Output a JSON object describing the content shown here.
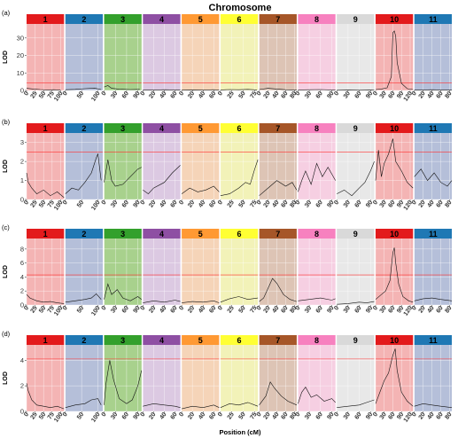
{
  "figure": {
    "title": "Chromosome",
    "xlabel": "Position (cM)"
  },
  "chromosomes": [
    {
      "label": "1",
      "color": "#e31a1c",
      "bg": "#f4b4b4",
      "ticks": [
        0,
        25,
        50,
        75,
        100
      ],
      "range": [
        0,
        110
      ]
    },
    {
      "label": "2",
      "color": "#1f78b4",
      "bg": "#b5bfd9",
      "ticks": [
        0,
        50,
        100
      ],
      "range": [
        0,
        115
      ]
    },
    {
      "label": "3",
      "color": "#33a02c",
      "bg": "#a8d18d",
      "ticks": [
        0,
        30,
        60,
        90
      ],
      "range": [
        0,
        100
      ]
    },
    {
      "label": "4",
      "color": "#8e4fa3",
      "bg": "#dcc9e2",
      "ticks": [
        0,
        20,
        40,
        60
      ],
      "range": [
        0,
        70
      ]
    },
    {
      "label": "5",
      "color": "#ff9933",
      "bg": "#f5d4b8",
      "ticks": [
        0,
        20,
        40,
        60
      ],
      "range": [
        0,
        70
      ]
    },
    {
      "label": "6",
      "color": "#ffff33",
      "bg": "#f2f2b8",
      "ticks": [
        0,
        25,
        50,
        75
      ],
      "range": [
        0,
        82
      ]
    },
    {
      "label": "7",
      "color": "#a65628",
      "bg": "#ddc4b5",
      "ticks": [
        0,
        20,
        40,
        60,
        80
      ],
      "range": [
        0,
        85
      ]
    },
    {
      "label": "8",
      "color": "#f781bf",
      "bg": "#f6cfe2",
      "ticks": [
        0,
        30,
        60,
        90
      ],
      "range": [
        0,
        100
      ]
    },
    {
      "label": "9",
      "color": "#d9d9d9",
      "bg": "#e8e8e8",
      "ticks": [
        0,
        30,
        60,
        90
      ],
      "range": [
        0,
        100
      ]
    },
    {
      "label": "10",
      "color": "#e31a1c",
      "bg": "#f4b4b4",
      "ticks": [
        0,
        30,
        60,
        90,
        120
      ],
      "range": [
        0,
        130
      ]
    },
    {
      "label": "11",
      "color": "#1f78b4",
      "bg": "#b5bfd9",
      "ticks": [
        0,
        20,
        40,
        60,
        80
      ],
      "range": [
        0,
        85
      ]
    }
  ],
  "panels": [
    {
      "label": "(a)",
      "ylabel": "LOD",
      "ylim": [
        0,
        38
      ],
      "yticks": [
        0,
        10,
        20,
        30
      ],
      "threshold": 4.3
    },
    {
      "label": "(b)",
      "ylabel": "LOD",
      "ylim": [
        0,
        3.5
      ],
      "yticks": [
        0,
        1,
        2,
        3
      ],
      "threshold": 2.5
    },
    {
      "label": "(c)",
      "ylabel": "LOD",
      "ylim": [
        0,
        9.5
      ],
      "yticks": [
        0,
        2,
        4,
        6,
        8
      ],
      "threshold": 4.3
    },
    {
      "label": "(d)",
      "ylabel": "LOD",
      "ylim": [
        0,
        5.2
      ],
      "yticks": [
        0,
        2,
        4
      ],
      "threshold": 4.1
    }
  ],
  "chart_data": [
    {
      "type": "line",
      "panel": "(a)",
      "ylabel": "LOD",
      "ylim": [
        0,
        38
      ],
      "threshold": 4.3,
      "series": [
        {
          "chromosome": "1",
          "x": [
            0,
            20,
            40,
            60,
            80,
            100
          ],
          "y": [
            1.2,
            0.8,
            0.5,
            0.3,
            0.4,
            0.2
          ]
        },
        {
          "chromosome": "2",
          "x": [
            0,
            30,
            60,
            90,
            110
          ],
          "y": [
            0.4,
            0.6,
            1.0,
            1.3,
            0.5
          ]
        },
        {
          "chromosome": "3",
          "x": [
            0,
            10,
            20,
            40,
            70,
            95
          ],
          "y": [
            2.0,
            2.8,
            1.2,
            0.7,
            0.5,
            0.6
          ]
        },
        {
          "chromosome": "4",
          "x": [
            0,
            20,
            40,
            60,
            70
          ],
          "y": [
            0.3,
            0.2,
            0.4,
            0.3,
            0.2
          ]
        },
        {
          "chromosome": "5",
          "x": [
            0,
            20,
            40,
            60,
            70
          ],
          "y": [
            0.2,
            0.3,
            0.2,
            0.4,
            0.2
          ]
        },
        {
          "chromosome": "6",
          "x": [
            0,
            20,
            40,
            60,
            80
          ],
          "y": [
            0.3,
            0.5,
            0.4,
            0.6,
            0.3
          ]
        },
        {
          "chromosome": "7",
          "x": [
            0,
            20,
            40,
            60,
            85
          ],
          "y": [
            0.5,
            1.2,
            0.8,
            0.4,
            0.3
          ]
        },
        {
          "chromosome": "8",
          "x": [
            0,
            30,
            60,
            90,
            100
          ],
          "y": [
            0.3,
            0.4,
            0.5,
            0.3,
            0.2
          ]
        },
        {
          "chromosome": "9",
          "x": [
            0,
            30,
            60,
            90,
            100
          ],
          "y": [
            0.1,
            0.2,
            0.1,
            0.2,
            0.1
          ]
        },
        {
          "chromosome": "10",
          "x": [
            0,
            20,
            40,
            55,
            60,
            65,
            70,
            75,
            90,
            110,
            130
          ],
          "y": [
            0.5,
            0.8,
            1.5,
            8,
            33,
            34,
            31,
            16,
            4,
            1.0,
            0.5
          ]
        },
        {
          "chromosome": "11",
          "x": [
            0,
            20,
            40,
            60,
            85
          ],
          "y": [
            0.2,
            0.3,
            0.4,
            0.3,
            0.2
          ]
        }
      ]
    },
    {
      "type": "line",
      "panel": "(b)",
      "ylabel": "LOD",
      "ylim": [
        0,
        3.5
      ],
      "threshold": 2.5,
      "series": [
        {
          "chromosome": "1",
          "x": [
            0,
            5,
            15,
            30,
            50,
            70,
            90,
            110
          ],
          "y": [
            1.4,
            0.9,
            0.6,
            0.3,
            0.5,
            0.2,
            0.4,
            0.1
          ]
        },
        {
          "chromosome": "2",
          "x": [
            0,
            20,
            40,
            60,
            80,
            95,
            100,
            110
          ],
          "y": [
            0.3,
            0.6,
            0.5,
            0.9,
            1.4,
            2.2,
            2.4,
            1.0
          ]
        },
        {
          "chromosome": "3",
          "x": [
            0,
            10,
            20,
            30,
            50,
            70,
            90,
            100
          ],
          "y": [
            0.9,
            2.1,
            1.0,
            0.7,
            0.8,
            1.2,
            1.6,
            1.7
          ]
        },
        {
          "chromosome": "4",
          "x": [
            0,
            10,
            20,
            40,
            55,
            70
          ],
          "y": [
            0.5,
            0.3,
            0.6,
            0.9,
            1.4,
            1.8
          ]
        },
        {
          "chromosome": "5",
          "x": [
            0,
            15,
            30,
            45,
            60,
            70
          ],
          "y": [
            0.3,
            0.6,
            0.4,
            0.5,
            0.7,
            0.4
          ]
        },
        {
          "chromosome": "6",
          "x": [
            0,
            20,
            40,
            55,
            65,
            75,
            82
          ],
          "y": [
            0.2,
            0.3,
            0.6,
            0.9,
            0.8,
            1.6,
            2.1
          ]
        },
        {
          "chromosome": "7",
          "x": [
            0,
            20,
            40,
            60,
            75,
            85
          ],
          "y": [
            0.2,
            0.6,
            1.0,
            0.7,
            0.9,
            0.5
          ]
        },
        {
          "chromosome": "8",
          "x": [
            0,
            10,
            20,
            35,
            50,
            65,
            80,
            100
          ],
          "y": [
            0.4,
            1.0,
            1.5,
            0.8,
            1.9,
            1.2,
            1.7,
            1.0
          ]
        },
        {
          "chromosome": "9",
          "x": [
            0,
            20,
            40,
            60,
            75,
            90,
            100
          ],
          "y": [
            0.3,
            0.5,
            0.2,
            0.6,
            0.9,
            1.5,
            2.0
          ]
        },
        {
          "chromosome": "10",
          "x": [
            0,
            10,
            20,
            30,
            45,
            60,
            70,
            90,
            110,
            130
          ],
          "y": [
            1.0,
            2.6,
            1.2,
            1.9,
            2.4,
            3.2,
            2.0,
            1.5,
            0.9,
            0.6
          ]
        },
        {
          "chromosome": "11",
          "x": [
            0,
            15,
            30,
            45,
            60,
            75,
            85
          ],
          "y": [
            1.2,
            1.6,
            1.0,
            1.4,
            0.9,
            0.7,
            1.0
          ]
        }
      ]
    },
    {
      "type": "line",
      "panel": "(c)",
      "ylabel": "LOD",
      "ylim": [
        0,
        9.5
      ],
      "threshold": 4.3,
      "series": [
        {
          "chromosome": "1",
          "x": [
            0,
            10,
            30,
            50,
            70,
            90,
            110
          ],
          "y": [
            1.5,
            1.0,
            0.6,
            0.4,
            0.5,
            0.3,
            0.2
          ]
        },
        {
          "chromosome": "2",
          "x": [
            0,
            30,
            60,
            80,
            95,
            110
          ],
          "y": [
            0.4,
            0.6,
            0.8,
            1.0,
            1.6,
            0.8
          ]
        },
        {
          "chromosome": "3",
          "x": [
            0,
            10,
            20,
            35,
            50,
            70,
            90,
            100
          ],
          "y": [
            0.8,
            3.0,
            1.5,
            2.2,
            1.0,
            0.6,
            1.2,
            0.8
          ]
        },
        {
          "chromosome": "4",
          "x": [
            0,
            20,
            40,
            60,
            70
          ],
          "y": [
            0.3,
            0.6,
            0.4,
            0.7,
            0.5
          ]
        },
        {
          "chromosome": "5",
          "x": [
            0,
            20,
            40,
            60,
            70
          ],
          "y": [
            0.3,
            0.5,
            0.4,
            0.6,
            0.3
          ]
        },
        {
          "chromosome": "6",
          "x": [
            0,
            20,
            40,
            60,
            82
          ],
          "y": [
            0.4,
            0.9,
            1.2,
            0.8,
            1.0
          ]
        },
        {
          "chromosome": "7",
          "x": [
            0,
            10,
            20,
            30,
            40,
            55,
            70,
            85
          ],
          "y": [
            0.5,
            1.0,
            2.4,
            3.8,
            3.1,
            1.5,
            0.8,
            0.5
          ]
        },
        {
          "chromosome": "8",
          "x": [
            0,
            30,
            60,
            90,
            100
          ],
          "y": [
            0.6,
            0.8,
            1.0,
            0.7,
            0.9
          ]
        },
        {
          "chromosome": "9",
          "x": [
            0,
            30,
            60,
            80,
            100
          ],
          "y": [
            0.1,
            0.2,
            0.4,
            0.3,
            0.5
          ]
        },
        {
          "chromosome": "10",
          "x": [
            0,
            20,
            35,
            50,
            60,
            65,
            70,
            80,
            95,
            115,
            130
          ],
          "y": [
            0.8,
            1.5,
            2.0,
            3.5,
            7.5,
            8.2,
            6.0,
            3.0,
            1.2,
            0.6,
            0.4
          ]
        },
        {
          "chromosome": "11",
          "x": [
            0,
            20,
            40,
            60,
            85
          ],
          "y": [
            0.6,
            0.9,
            1.0,
            0.8,
            0.6
          ]
        }
      ]
    },
    {
      "type": "line",
      "panel": "(d)",
      "ylabel": "LOD",
      "ylim": [
        0,
        5.2
      ],
      "threshold": 4.1,
      "series": [
        {
          "chromosome": "1",
          "x": [
            0,
            5,
            15,
            30,
            50,
            70,
            90,
            110
          ],
          "y": [
            2.2,
            1.6,
            0.9,
            0.5,
            0.4,
            0.3,
            0.4,
            0.2
          ]
        },
        {
          "chromosome": "2",
          "x": [
            0,
            30,
            60,
            80,
            100,
            110
          ],
          "y": [
            0.3,
            0.5,
            0.6,
            0.9,
            1.0,
            0.5
          ]
        },
        {
          "chromosome": "3",
          "x": [
            0,
            5,
            15,
            25,
            40,
            60,
            75,
            90,
            100
          ],
          "y": [
            0.5,
            2.2,
            4.0,
            2.5,
            1.0,
            0.6,
            0.9,
            2.0,
            3.2
          ]
        },
        {
          "chromosome": "4",
          "x": [
            0,
            20,
            40,
            60,
            70
          ],
          "y": [
            0.4,
            0.6,
            0.5,
            0.4,
            0.3
          ]
        },
        {
          "chromosome": "5",
          "x": [
            0,
            20,
            40,
            60,
            70
          ],
          "y": [
            0.2,
            0.4,
            0.3,
            0.5,
            0.3
          ]
        },
        {
          "chromosome": "6",
          "x": [
            0,
            20,
            40,
            60,
            82
          ],
          "y": [
            0.3,
            0.6,
            0.5,
            0.7,
            0.4
          ]
        },
        {
          "chromosome": "7",
          "x": [
            0,
            15,
            25,
            35,
            50,
            65,
            85
          ],
          "y": [
            0.5,
            1.2,
            2.3,
            1.8,
            1.2,
            0.8,
            0.5
          ]
        },
        {
          "chromosome": "8",
          "x": [
            0,
            10,
            20,
            35,
            50,
            70,
            90,
            100
          ],
          "y": [
            0.6,
            1.5,
            1.9,
            1.1,
            1.3,
            0.8,
            1.0,
            0.7
          ]
        },
        {
          "chromosome": "9",
          "x": [
            0,
            30,
            60,
            80,
            100
          ],
          "y": [
            0.3,
            0.4,
            0.5,
            0.7,
            0.9
          ]
        },
        {
          "chromosome": "10",
          "x": [
            0,
            15,
            30,
            45,
            60,
            68,
            75,
            90,
            110,
            130
          ],
          "y": [
            0.6,
            1.5,
            2.4,
            3.0,
            4.4,
            4.9,
            3.2,
            1.5,
            0.8,
            0.4
          ]
        },
        {
          "chromosome": "11",
          "x": [
            0,
            20,
            40,
            60,
            85
          ],
          "y": [
            0.4,
            0.6,
            0.5,
            0.4,
            0.3
          ]
        }
      ]
    }
  ]
}
